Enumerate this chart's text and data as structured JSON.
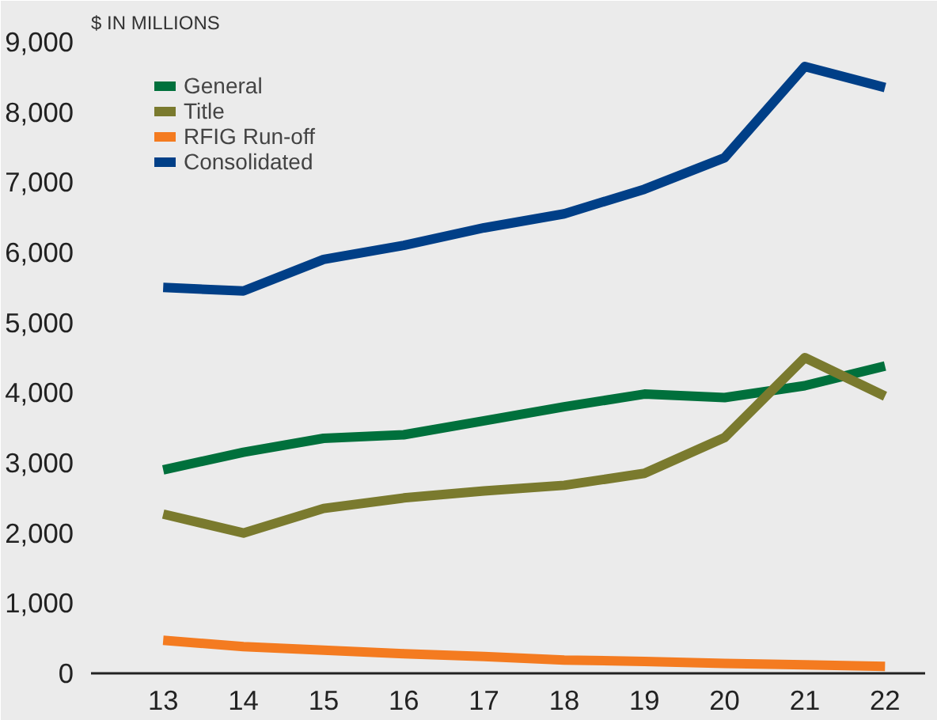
{
  "chart_data": {
    "type": "line",
    "ylabel": "$ IN MILLIONS",
    "categories": [
      "13",
      "14",
      "15",
      "16",
      "17",
      "18",
      "19",
      "20",
      "21",
      "22"
    ],
    "series": [
      {
        "name": "General",
        "color": "#00703c",
        "values": [
          2900,
          3150,
          3350,
          3400,
          3600,
          3800,
          3980,
          3930,
          4100,
          4380
        ]
      },
      {
        "name": "Title",
        "color": "#7a7a2e",
        "values": [
          2270,
          2000,
          2350,
          2500,
          2600,
          2680,
          2850,
          3360,
          4500,
          3950
        ]
      },
      {
        "name": "RFIG Run-off",
        "color": "#f47b20",
        "values": [
          470,
          380,
          330,
          280,
          240,
          190,
          170,
          140,
          120,
          100
        ]
      },
      {
        "name": "Consolidated",
        "color": "#003f87",
        "values": [
          5500,
          5450,
          5900,
          6100,
          6350,
          6550,
          6900,
          7350,
          8650,
          8350
        ]
      }
    ],
    "ylim": [
      0,
      9000
    ],
    "yticks": [
      {
        "value": 0,
        "label": "0"
      },
      {
        "value": 1000,
        "label": "1,000"
      },
      {
        "value": 2000,
        "label": "2,000"
      },
      {
        "value": 3000,
        "label": "3,000"
      },
      {
        "value": 4000,
        "label": "4,000"
      },
      {
        "value": 5000,
        "label": "5,000"
      },
      {
        "value": 6000,
        "label": "6,000"
      },
      {
        "value": 7000,
        "label": "7,000"
      },
      {
        "value": 8000,
        "label": "8,000"
      },
      {
        "value": 9000,
        "label": "9,000"
      }
    ],
    "legend": "top left",
    "grid": false
  }
}
